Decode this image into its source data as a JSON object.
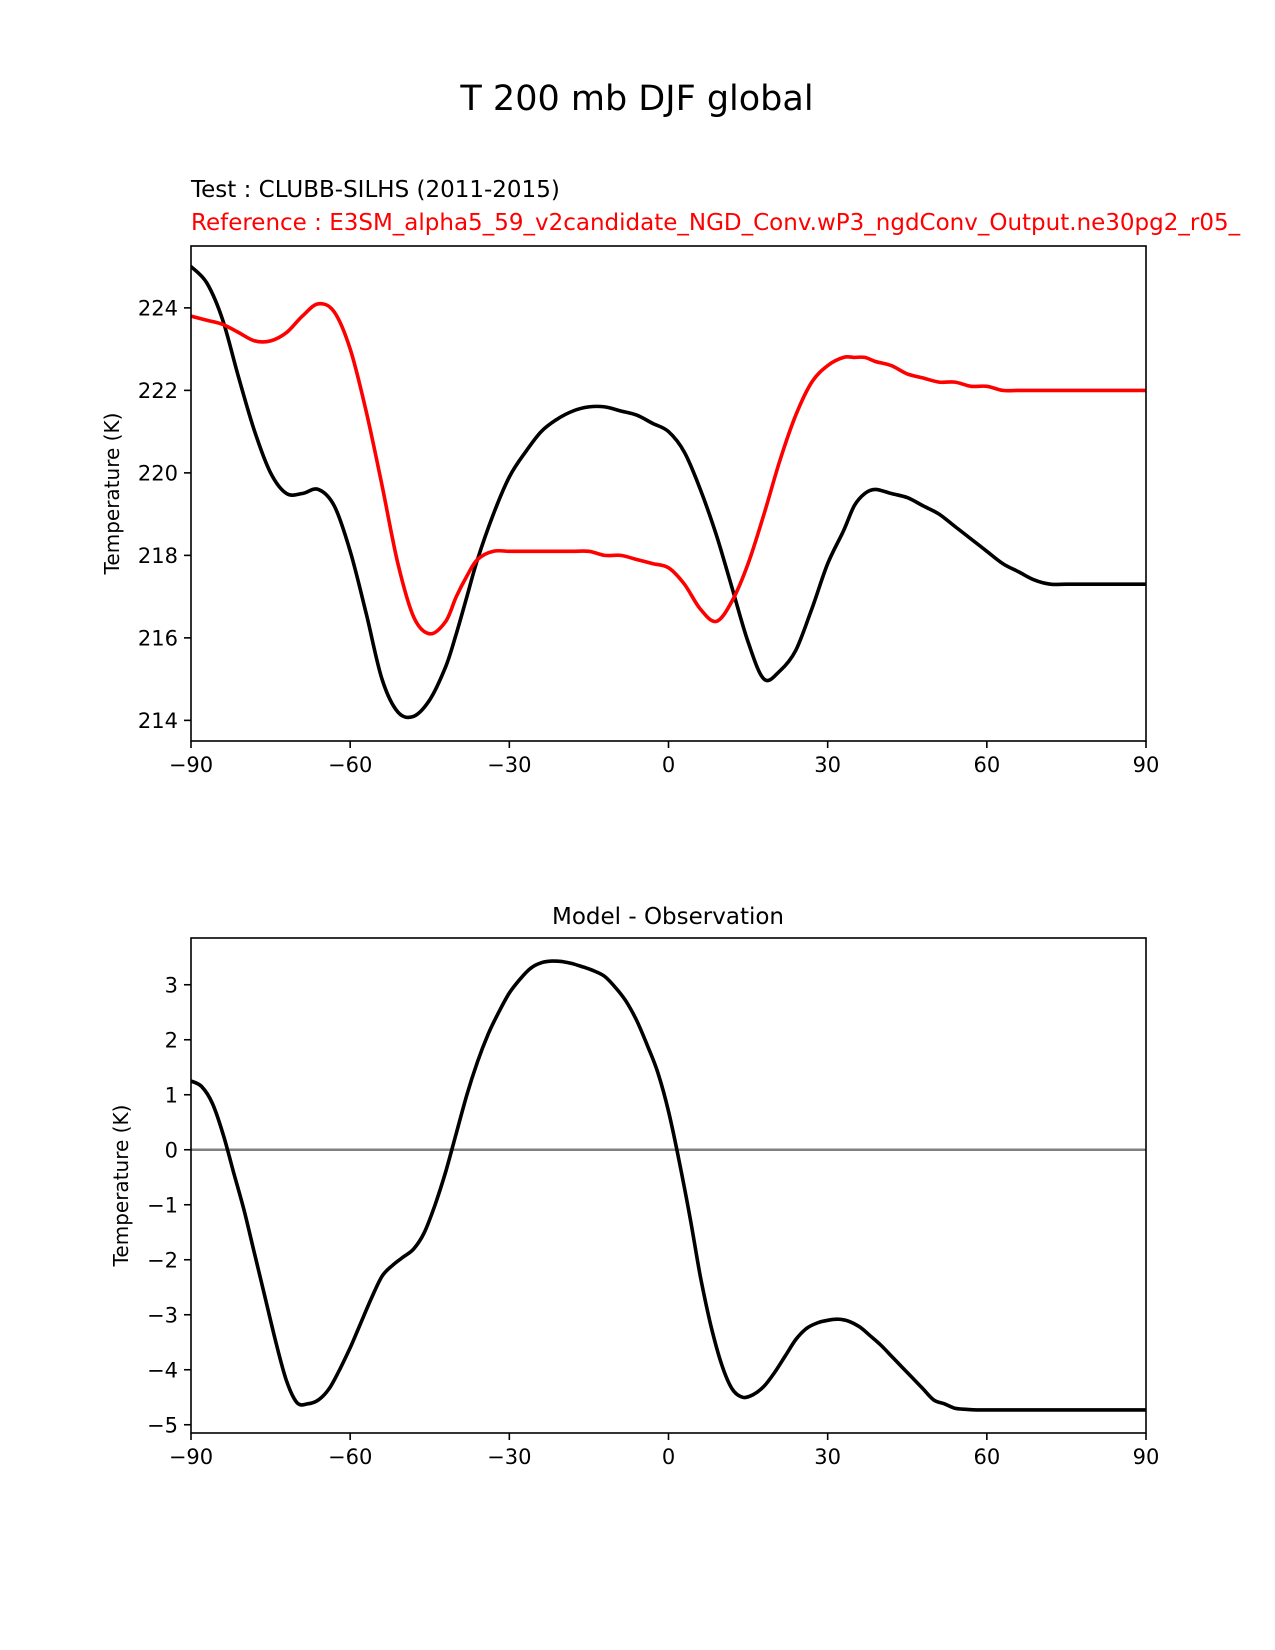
{
  "suptitle": "T 200 mb DJF global",
  "colors": {
    "test": "#000000",
    "reference": "#ff0000",
    "zero_line": "#808080"
  },
  "chart_data": [
    {
      "type": "line",
      "test_label": "Test : CLUBB-SILHS (2011-2015)",
      "reference_label": "Reference : E3SM_alpha5_59_v2candidate_NGD_Conv.wP3_ngdConv_Output.ne30pg2_r05_",
      "ylabel": "Temperature (K)",
      "xlim": [
        -90,
        90
      ],
      "ylim": [
        213.5,
        225.5
      ],
      "xticks": [
        -90,
        -60,
        -30,
        0,
        30,
        60,
        90
      ],
      "xtick_labels": [
        "−90",
        "−60",
        "−30",
        "0",
        "30",
        "60",
        "90"
      ],
      "yticks": [
        214,
        216,
        218,
        220,
        222,
        224
      ],
      "ytick_labels": [
        "214",
        "216",
        "218",
        "220",
        "222",
        "224"
      ],
      "series": [
        {
          "key": "test",
          "x": [
            -90,
            -87,
            -84,
            -81,
            -78,
            -75,
            -72,
            -69,
            -66,
            -63,
            -60,
            -57,
            -54,
            -51,
            -48,
            -45,
            -42,
            -40,
            -38,
            -36,
            -33,
            -30,
            -27,
            -24,
            -21,
            -18,
            -15,
            -12,
            -9,
            -6,
            -3,
            0,
            3,
            6,
            9,
            12,
            15,
            18,
            21,
            24,
            27,
            30,
            33,
            35,
            37,
            39,
            42,
            45,
            48,
            51,
            54,
            57,
            60,
            63,
            66,
            69,
            72,
            75,
            78,
            81,
            84,
            87,
            90
          ],
          "y": [
            225.0,
            224.6,
            223.7,
            222.3,
            221.0,
            220.0,
            219.5,
            219.5,
            219.6,
            219.2,
            218.1,
            216.6,
            215.0,
            214.2,
            214.1,
            214.5,
            215.3,
            216.1,
            217.0,
            217.9,
            219.0,
            219.9,
            220.5,
            221.0,
            221.3,
            221.5,
            221.6,
            221.6,
            221.5,
            221.4,
            221.2,
            221.0,
            220.5,
            219.6,
            218.5,
            217.2,
            215.9,
            215.0,
            215.2,
            215.7,
            216.7,
            217.8,
            218.6,
            219.2,
            219.5,
            219.6,
            219.5,
            219.4,
            219.2,
            219.0,
            218.7,
            218.4,
            218.1,
            217.8,
            217.6,
            217.4,
            217.3,
            217.3,
            217.3,
            217.3,
            217.3,
            217.3,
            217.3
          ]
        },
        {
          "key": "reference",
          "x": [
            -90,
            -87,
            -84,
            -81,
            -78,
            -75,
            -72,
            -69,
            -66,
            -63,
            -60,
            -57,
            -54,
            -51,
            -48,
            -45,
            -42,
            -40,
            -38,
            -36,
            -33,
            -30,
            -27,
            -24,
            -21,
            -18,
            -15,
            -12,
            -9,
            -6,
            -3,
            0,
            3,
            6,
            9,
            12,
            15,
            18,
            21,
            24,
            27,
            30,
            33,
            35,
            37,
            39,
            42,
            45,
            48,
            51,
            54,
            57,
            60,
            63,
            66,
            69,
            72,
            75,
            78,
            81,
            84,
            87,
            90
          ],
          "y": [
            223.8,
            223.7,
            223.6,
            223.4,
            223.2,
            223.2,
            223.4,
            223.8,
            224.1,
            223.9,
            223.0,
            221.5,
            219.7,
            217.8,
            216.5,
            216.1,
            216.4,
            217.0,
            217.5,
            217.9,
            218.1,
            218.1,
            218.1,
            218.1,
            218.1,
            218.1,
            218.1,
            218.0,
            218.0,
            217.9,
            217.8,
            217.7,
            217.3,
            216.7,
            216.4,
            216.9,
            217.8,
            219.0,
            220.3,
            221.4,
            222.2,
            222.6,
            222.8,
            222.8,
            222.8,
            222.7,
            222.6,
            222.4,
            222.3,
            222.2,
            222.2,
            222.1,
            222.1,
            222.0,
            222.0,
            222.0,
            222.0,
            222.0,
            222.0,
            222.0,
            222.0,
            222.0,
            222.0
          ]
        }
      ]
    },
    {
      "type": "line",
      "title": "Model - Observation",
      "ylabel": "Temperature (K)",
      "xlim": [
        -90,
        90
      ],
      "ylim": [
        -5.15,
        3.85
      ],
      "xticks": [
        -90,
        -60,
        -30,
        0,
        30,
        60,
        90
      ],
      "xtick_labels": [
        "−90",
        "−60",
        "−30",
        "0",
        "30",
        "60",
        "90"
      ],
      "yticks": [
        -5,
        -4,
        -3,
        -2,
        -1,
        0,
        1,
        2,
        3
      ],
      "ytick_labels": [
        "−5",
        "−4",
        "−3",
        "−2",
        "−1",
        "0",
        "1",
        "2",
        "3"
      ],
      "zero_line": 0,
      "series": [
        {
          "key": "test",
          "x": [
            -90,
            -88,
            -86,
            -84,
            -82,
            -80,
            -78,
            -76,
            -74,
            -72,
            -70,
            -68,
            -66,
            -64,
            -62,
            -60,
            -58,
            -56,
            -54,
            -52,
            -50,
            -48,
            -46,
            -44,
            -42,
            -40,
            -38,
            -36,
            -34,
            -32,
            -30,
            -28,
            -26,
            -24,
            -22,
            -20,
            -18,
            -16,
            -14,
            -12,
            -10,
            -8,
            -6,
            -4,
            -2,
            0,
            2,
            4,
            6,
            8,
            10,
            12,
            14,
            16,
            18,
            20,
            22,
            24,
            26,
            28,
            30,
            32,
            34,
            36,
            38,
            40,
            42,
            44,
            46,
            48,
            50,
            52,
            54,
            56,
            58,
            60,
            62,
            64,
            66,
            68,
            70,
            72,
            74,
            76,
            78,
            80,
            82,
            84,
            86,
            88,
            90
          ],
          "y": [
            1.25,
            1.15,
            0.85,
            0.3,
            -0.4,
            -1.1,
            -1.9,
            -2.7,
            -3.5,
            -4.2,
            -4.6,
            -4.62,
            -4.55,
            -4.35,
            -4.0,
            -3.6,
            -3.15,
            -2.7,
            -2.3,
            -2.1,
            -1.95,
            -1.8,
            -1.5,
            -1.0,
            -0.4,
            0.3,
            1.0,
            1.6,
            2.1,
            2.5,
            2.85,
            3.1,
            3.3,
            3.4,
            3.43,
            3.42,
            3.38,
            3.32,
            3.25,
            3.15,
            2.95,
            2.7,
            2.35,
            1.9,
            1.4,
            0.7,
            -0.2,
            -1.2,
            -2.3,
            -3.2,
            -3.9,
            -4.35,
            -4.5,
            -4.45,
            -4.3,
            -4.05,
            -3.75,
            -3.45,
            -3.25,
            -3.15,
            -3.1,
            -3.08,
            -3.12,
            -3.22,
            -3.38,
            -3.55,
            -3.75,
            -3.95,
            -4.15,
            -4.35,
            -4.55,
            -4.62,
            -4.7,
            -4.72,
            -4.73,
            -4.73,
            -4.73,
            -4.73,
            -4.73,
            -4.73,
            -4.73,
            -4.73,
            -4.73,
            -4.73,
            -4.73,
            -4.73,
            -4.73,
            -4.73,
            -4.73,
            -4.73,
            -4.73
          ]
        }
      ]
    }
  ]
}
